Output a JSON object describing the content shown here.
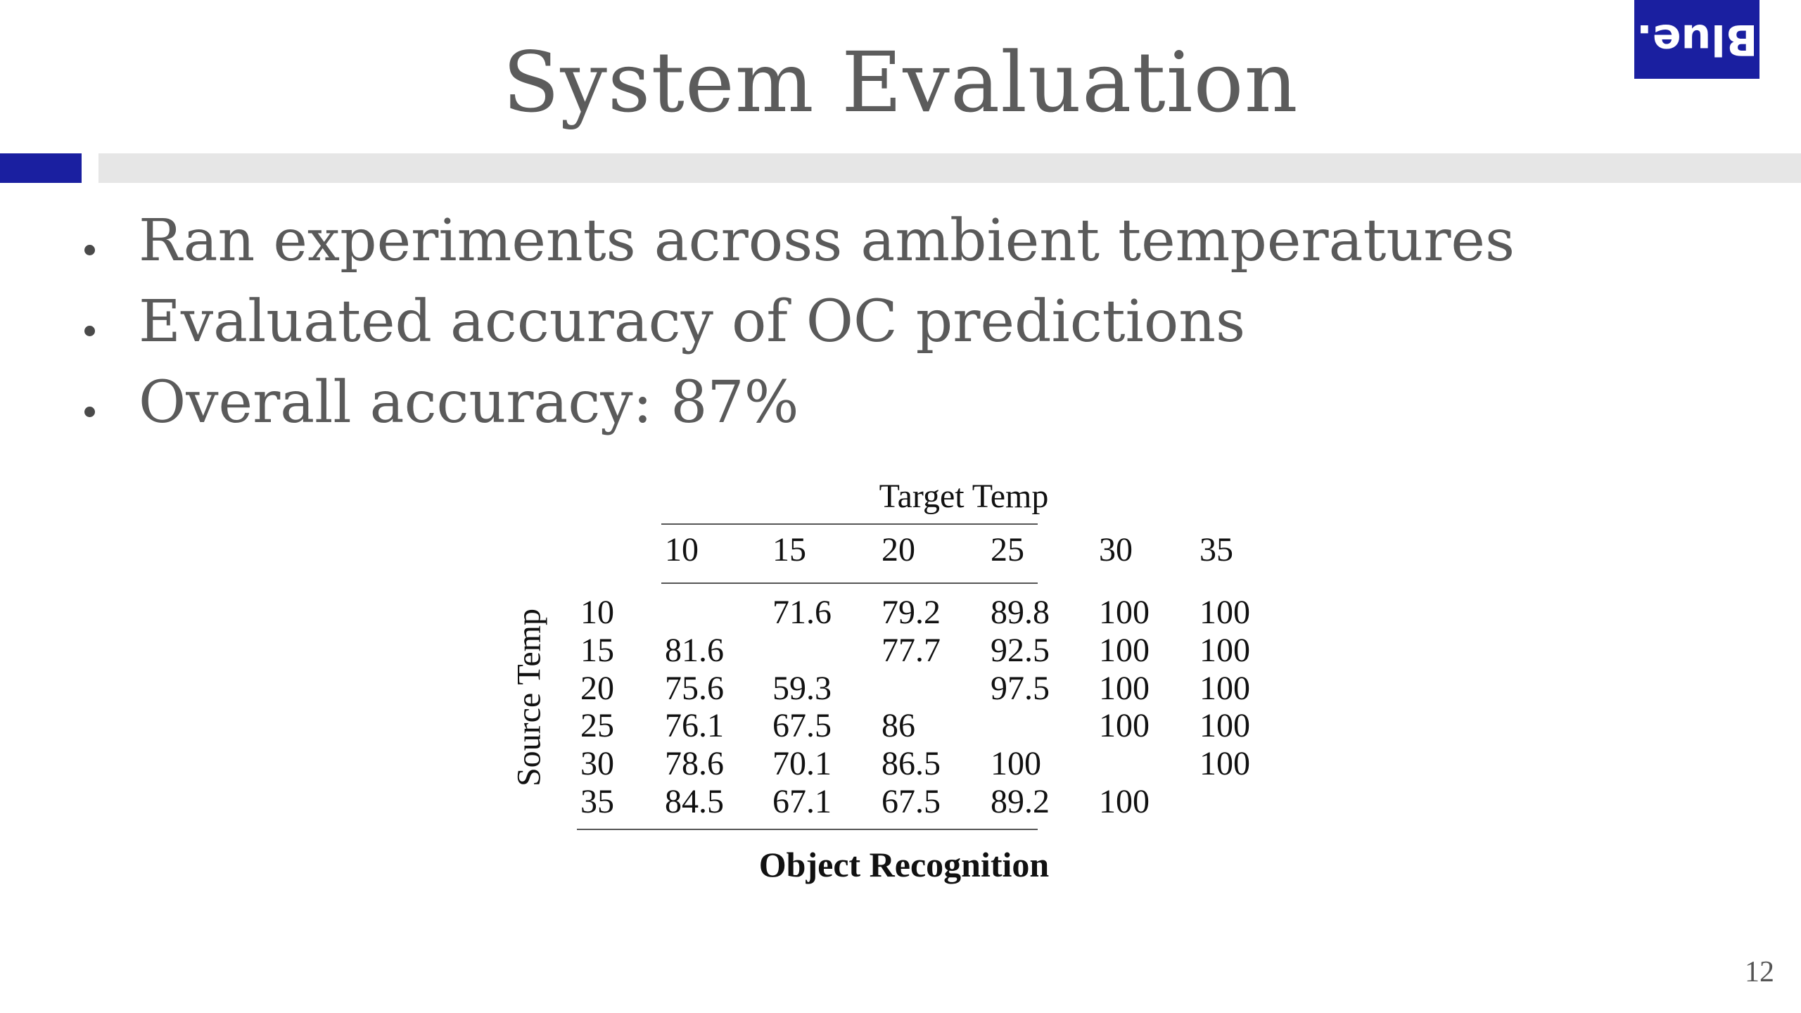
{
  "slide": {
    "title": "System Evaluation",
    "logo_text": "Blue.",
    "bullets": [
      "Ran experiments across ambient temperatures",
      "Evaluated accuracy of OC predictions",
      "Overall accuracy: 87%"
    ],
    "page_number": "12"
  },
  "table": {
    "column_group_label": "Target Temp",
    "row_group_label": "Source Temp",
    "columns": [
      "10",
      "15",
      "20",
      "25",
      "30",
      "35"
    ],
    "rows": [
      {
        "label": "10",
        "cells": [
          "",
          "71.6",
          "79.2",
          "89.8",
          "100",
          "100"
        ]
      },
      {
        "label": "15",
        "cells": [
          "81.6",
          "",
          "77.7",
          "92.5",
          "100",
          "100"
        ]
      },
      {
        "label": "20",
        "cells": [
          "75.6",
          "59.3",
          "",
          "97.5",
          "100",
          "100"
        ]
      },
      {
        "label": "25",
        "cells": [
          "76.1",
          "67.5",
          "86",
          "",
          "100",
          "100"
        ]
      },
      {
        "label": "30",
        "cells": [
          "78.6",
          "70.1",
          "86.5",
          "100",
          "",
          "100"
        ]
      },
      {
        "label": "35",
        "cells": [
          "84.5",
          "67.1",
          "67.5",
          "89.2",
          "100",
          ""
        ]
      }
    ],
    "caption": "Object Recognition"
  },
  "colors": {
    "accent": "#1a1fa0",
    "title_text": "#5c5c5c",
    "rule_gray": "#e6e6e6"
  }
}
